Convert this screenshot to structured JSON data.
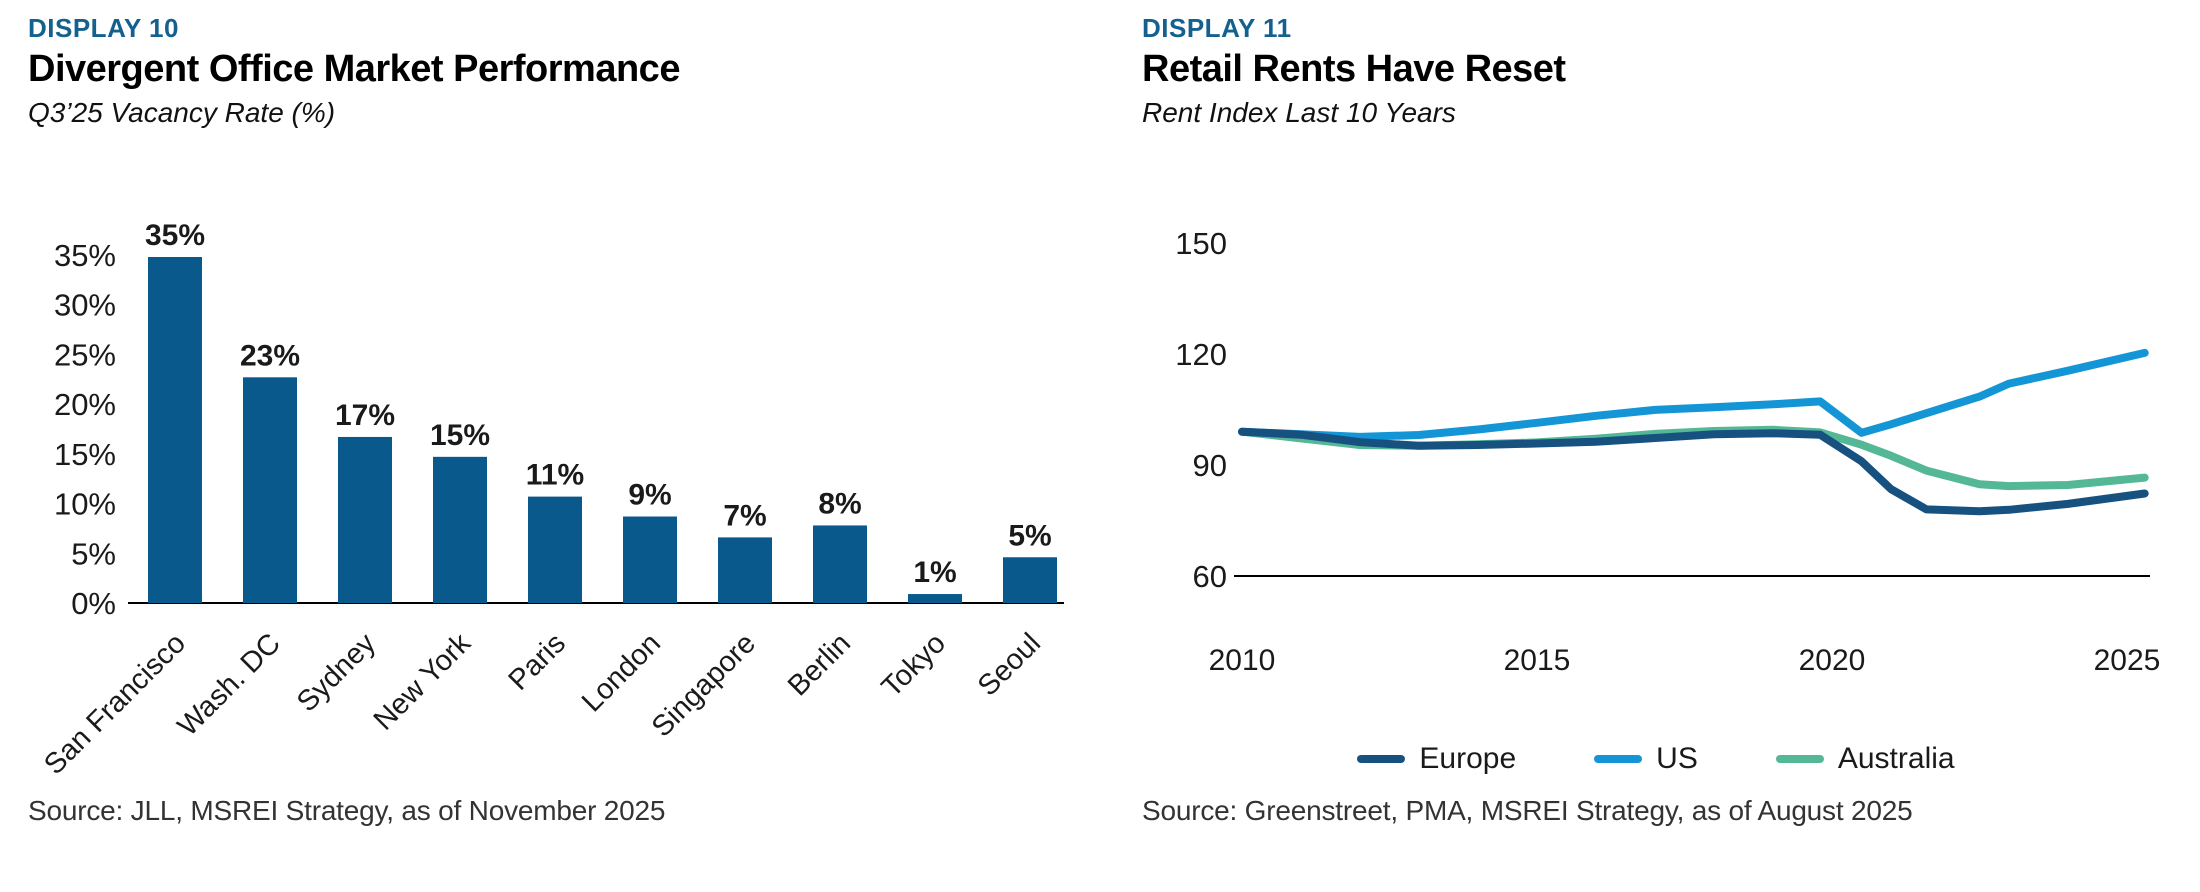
{
  "colors": {
    "display_label_blue": "#14608F",
    "bar_blue": "#09598C",
    "europe_navy": "#175180",
    "us_blue": "#1496D6",
    "australia_green": "#54B795",
    "axis_black": "#000000",
    "tick_text": "#1a1a1a"
  },
  "left_panel": {
    "display_label": "DISPLAY 10",
    "title": "Divergent Office Market Performance",
    "subtitle": "Q3’25 Vacancy Rate (%)",
    "source": "Source: JLL, MSREI Strategy, as of November 2025",
    "chart_data": {
      "type": "bar",
      "categories": [
        "San Francisco",
        "Wash. DC",
        "Sydney",
        "New York",
        "Paris",
        "London",
        "Singapore",
        "Berlin",
        "Tokyo",
        "Seoul"
      ],
      "values": [
        34.8,
        22.7,
        16.7,
        14.7,
        10.7,
        8.7,
        6.6,
        7.8,
        0.9,
        4.6
      ],
      "value_labels": [
        "35%",
        "23%",
        "17%",
        "15%",
        "11%",
        "9%",
        "7%",
        "8%",
        "1%",
        "5%"
      ],
      "title": "Q3'25 Vacancy Rate (%)",
      "xlabel": "",
      "ylabel": "",
      "ylim": [
        0,
        35
      ],
      "yticks": [
        0,
        5,
        10,
        15,
        20,
        25,
        30,
        35
      ],
      "ytick_labels": [
        "0%",
        "5%",
        "10%",
        "15%",
        "20%",
        "25%",
        "30%",
        "35%"
      ],
      "bar_color": "#09598C",
      "grid": false,
      "legend_position": "none"
    }
  },
  "right_panel": {
    "display_label": "DISPLAY 11",
    "title": "Retail Rents Have Reset",
    "subtitle": "Rent Index Last 10 Years",
    "source": "Source: Greenstreet, PMA, MSREI Strategy, as of August 2025",
    "chart_data": {
      "type": "line",
      "x": [
        2010,
        2011,
        2012,
        2013,
        2014,
        2015,
        2016,
        2017,
        2018,
        2019,
        2019.8,
        2020.5,
        2021,
        2021.6,
        2022.5,
        2023,
        2024,
        2025.3
      ],
      "series": [
        {
          "name": "Australia",
          "color": "#54B795",
          "values": [
            99,
            97.2,
            95.4,
            95.2,
            95.6,
            96.1,
            97.1,
            98.4,
            99.2,
            99.5,
            98.8,
            95.5,
            92.5,
            88.5,
            84.8,
            84.3,
            84.6,
            86.6
          ]
        },
        {
          "name": "US",
          "color": "#1496D6",
          "values": [
            99,
            98.3,
            97.6,
            98.1,
            99.6,
            101.4,
            103.3,
            104.9,
            105.6,
            106.4,
            107.2,
            98.7,
            101,
            104,
            108.5,
            112,
            115.5,
            120.3
          ]
        },
        {
          "name": "Europe",
          "color": "#175180",
          "values": [
            99,
            98.2,
            96.2,
            95.2,
            95.4,
            95.8,
            96.3,
            97.3,
            98.3,
            98.6,
            98.2,
            91,
            83.5,
            78,
            77.5,
            77.9,
            79.5,
            82.3
          ]
        }
      ],
      "legend_order": [
        "Europe",
        "US",
        "Australia"
      ],
      "title": "Rent Index Last 10 Years",
      "xlabel": "",
      "ylabel": "",
      "ylim": [
        60,
        155
      ],
      "yticks": [
        60,
        90,
        120,
        150
      ],
      "ytick_labels": [
        "60",
        "90",
        "120",
        "150"
      ],
      "xticks": [
        2010,
        2015,
        2020,
        2025
      ],
      "xtick_labels": [
        "2010",
        "2015",
        "2020",
        "2025"
      ],
      "grid": false,
      "legend_position": "bottom"
    }
  }
}
